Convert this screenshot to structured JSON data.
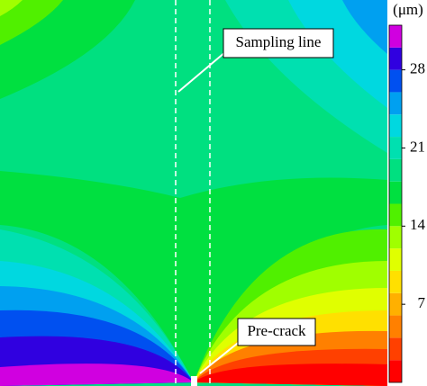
{
  "chart_data": {
    "type": "contour",
    "colorbar": {
      "unit": "(μm)",
      "levels": [
        0,
        2,
        4,
        6,
        8,
        10,
        12,
        14,
        16,
        18,
        20,
        22,
        24,
        26,
        28,
        30,
        32
      ],
      "colors": [
        "#ff0000",
        "#ff4000",
        "#ff8000",
        "#ffb000",
        "#ffe000",
        "#e0ff00",
        "#a0ff00",
        "#50f000",
        "#00e040",
        "#00e080",
        "#00e0b0",
        "#00d8e0",
        "#00a0f0",
        "#0050f0",
        "#3000e0",
        "#d000e0"
      ],
      "clim": [
        0,
        32
      ],
      "ticks": [
        7,
        14,
        21,
        28
      ]
    },
    "annotations": [
      "Sampling line",
      "Pre-crack"
    ]
  }
}
